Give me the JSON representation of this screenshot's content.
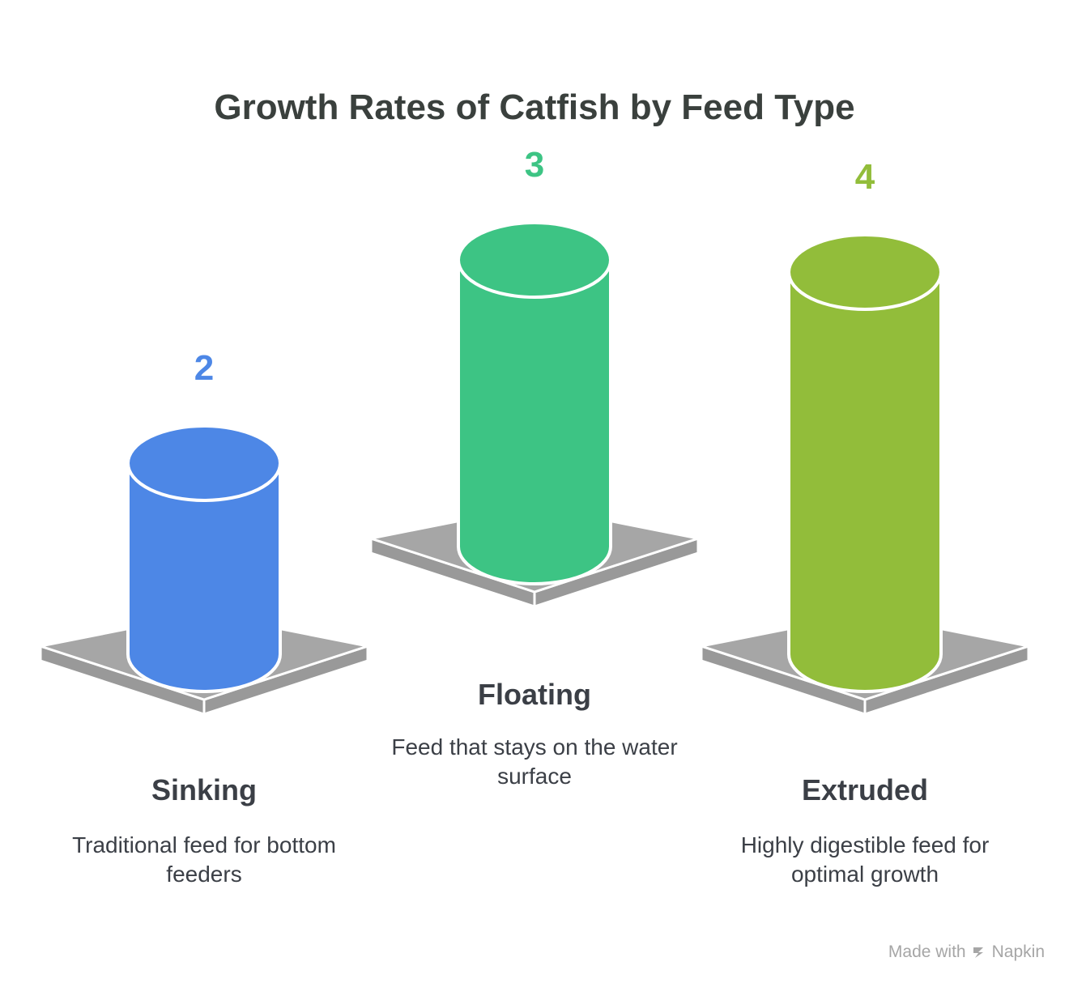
{
  "chart_data": {
    "type": "bar",
    "title": "Growth Rates of Catfish by Feed Type",
    "categories": [
      "Sinking",
      "Floating",
      "Extruded"
    ],
    "values": [
      2,
      3,
      4
    ],
    "descriptions": [
      "Traditional feed for bottom feeders",
      "Feed that stays on the water surface",
      "Highly digestible feed for optimal growth"
    ],
    "colors": [
      "#4d87e6",
      "#3dc484",
      "#92bd3a"
    ],
    "base_color": "#a6a6a6",
    "grid": false
  },
  "footer": {
    "made_with": "Made with",
    "brand": "Napkin"
  }
}
